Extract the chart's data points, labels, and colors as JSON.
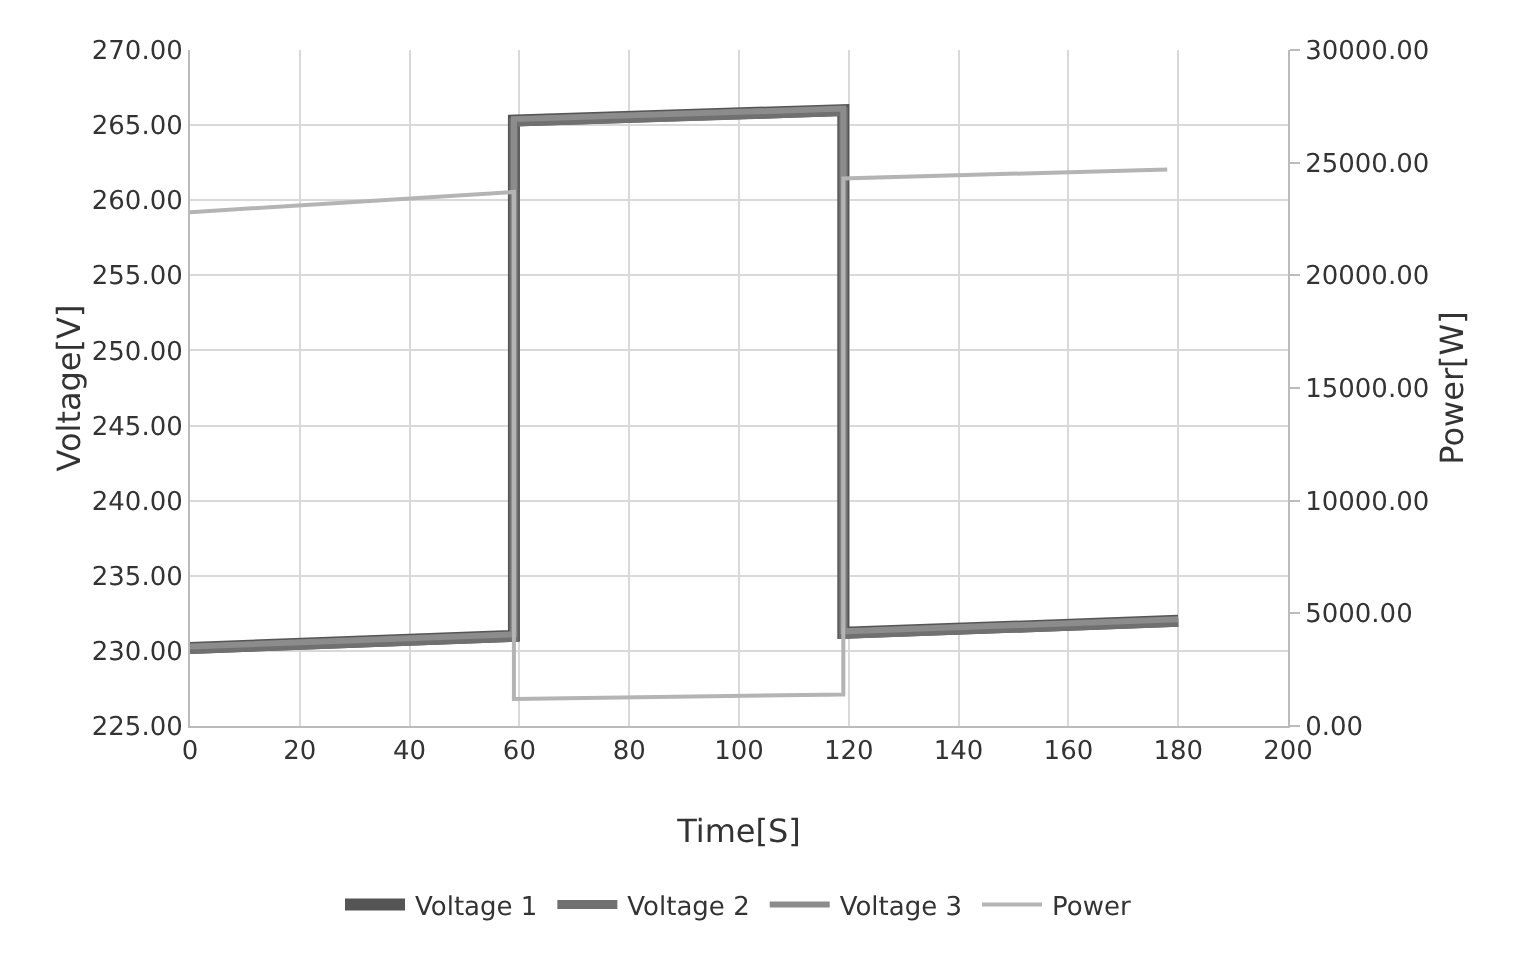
{
  "chart_data": {
    "type": "line",
    "xlabel": "Time[S]",
    "ylabel": "Voltage[V]",
    "y2label": "Power[W]",
    "x": [
      0,
      59,
      59,
      119,
      119,
      180
    ],
    "series": [
      {
        "name": "Voltage 1",
        "color": "#555555",
        "values": [
          230.2,
          231,
          265.3,
          266,
          231.2,
          232
        ]
      },
      {
        "name": "Voltage 2",
        "color": "#707070",
        "values": [
          230.1,
          230.9,
          265.2,
          265.9,
          231.1,
          231.9
        ]
      },
      {
        "name": "Voltage 3",
        "color": "#8c8c8c",
        "values": [
          230.3,
          231.1,
          265.4,
          266.1,
          231.3,
          232.1
        ]
      },
      {
        "name": "Power",
        "color": "#b4b4b4",
        "axis": "y2",
        "x": [
          0,
          59,
          59,
          119,
          119,
          178
        ],
        "values": [
          22800,
          23700,
          1200,
          1400,
          24300,
          24700
        ]
      }
    ],
    "xlim": [
      0,
      200
    ],
    "xticks": [
      0,
      20,
      40,
      60,
      80,
      100,
      120,
      140,
      160,
      180,
      200
    ],
    "ylim": [
      225,
      270
    ],
    "yticks": [
      {
        "value": 225,
        "label": "225.00"
      },
      {
        "value": 230,
        "label": "230.00"
      },
      {
        "value": 235,
        "label": "235.00"
      },
      {
        "value": 240,
        "label": "240.00"
      },
      {
        "value": 245,
        "label": "245.00"
      },
      {
        "value": 250,
        "label": "250.00"
      },
      {
        "value": 255,
        "label": "255.00"
      },
      {
        "value": 260,
        "label": "260.00"
      },
      {
        "value": 265,
        "label": "265.00"
      },
      {
        "value": 270,
        "label": "270.00"
      }
    ],
    "y2lim": [
      0,
      30000
    ],
    "y2ticks": [
      {
        "value": 0,
        "label": "0.00"
      },
      {
        "value": 5000,
        "label": "5000.00"
      },
      {
        "value": 10000,
        "label": "10000.00"
      },
      {
        "value": 15000,
        "label": "15000.00"
      },
      {
        "value": 20000,
        "label": "20000.00"
      },
      {
        "value": 25000,
        "label": "25000.00"
      },
      {
        "value": 30000,
        "label": "30000.00"
      }
    ],
    "grid": true,
    "legend": "bottom",
    "marker": "none",
    "line_style": "solid"
  }
}
